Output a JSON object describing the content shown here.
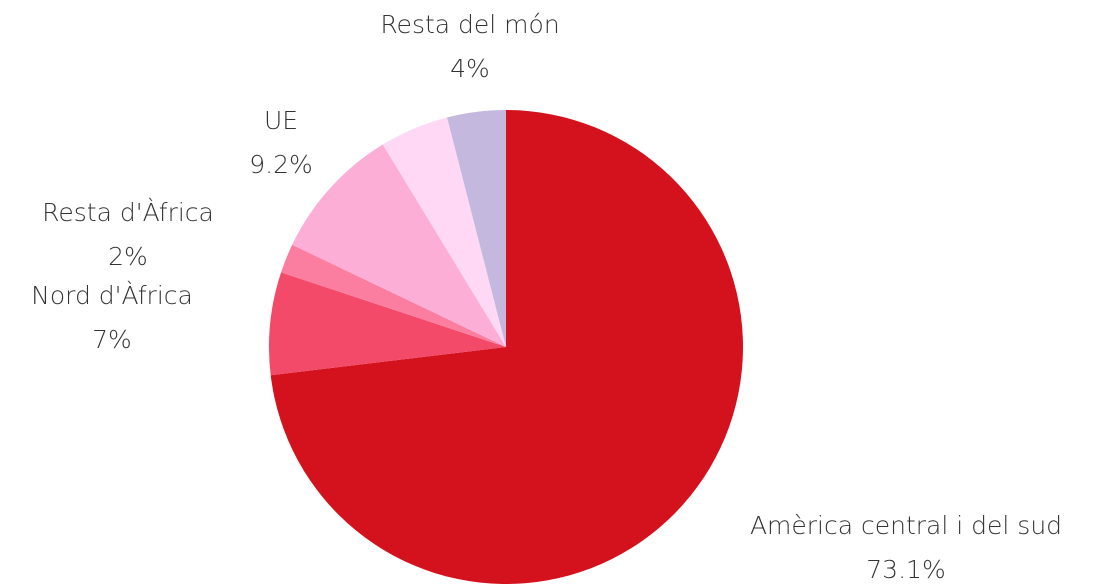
{
  "chart_data": {
    "type": "pie",
    "categories": [
      "Amèrica central i del sud",
      "Nord d'Àfrica",
      "Resta d'Àfrica",
      "UE",
      null,
      "Resta del món"
    ],
    "values": [
      73.1,
      7,
      2,
      9.2,
      4.7,
      4
    ],
    "value_labels": [
      "73.1%",
      "7%",
      "2%",
      "9.2%",
      null,
      "4%"
    ],
    "colors": [
      "#d4121e",
      "#f24a68",
      "#fb7ea0",
      "#fdaed7",
      "#fed8f5",
      "#c5b8de"
    ]
  }
}
